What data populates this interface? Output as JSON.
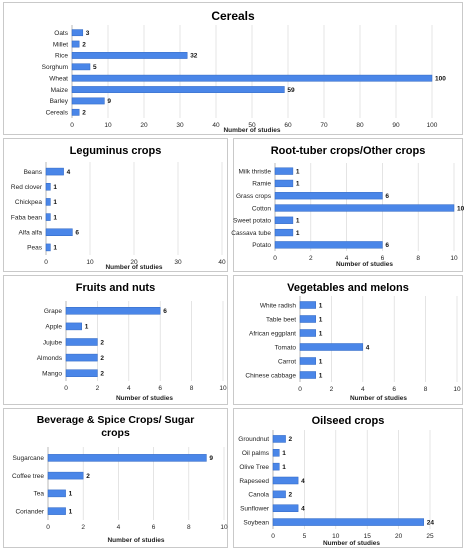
{
  "chart_data": [
    {
      "type": "bar",
      "title": "Cereals",
      "categories": [
        "Oats",
        "Millet",
        "Rice",
        "Sorghum",
        "Wheat",
        "Maize",
        "Barley",
        "Cereals"
      ],
      "values": [
        3,
        2,
        32,
        5,
        100,
        59,
        9,
        2
      ],
      "xlabel": "Number of studies",
      "xlim": [
        0,
        100
      ],
      "xticks": [
        0,
        10,
        20,
        30,
        40,
        50,
        60,
        70,
        80,
        90,
        100
      ],
      "orientation": "horizontal",
      "grid": true
    },
    {
      "type": "bar",
      "title": "Leguminus crops",
      "categories": [
        "Beans",
        "Red clover",
        "Chickpea",
        "Faba bean",
        "Alfa alfa",
        "Peas"
      ],
      "values": [
        4,
        1,
        1,
        1,
        6,
        1
      ],
      "xlabel": "Number of studies",
      "xlim": [
        0,
        40
      ],
      "xticks": [
        0,
        10,
        20,
        30,
        40
      ],
      "orientation": "horizontal",
      "grid": true
    },
    {
      "type": "bar",
      "title": "Root-tuber crops/Other crops",
      "categories": [
        "Milk thristle",
        "Ramie",
        "Grass crops",
        "Cotton",
        "Sweet potato",
        "Cassava tube",
        "Potato"
      ],
      "values": [
        1,
        1,
        6,
        10,
        1,
        1,
        6
      ],
      "xlabel": "Number of studies",
      "xlim": [
        0,
        10
      ],
      "xticks": [
        0,
        2,
        4,
        6,
        8,
        10
      ],
      "orientation": "horizontal",
      "grid": true
    },
    {
      "type": "bar",
      "title": "Fruits and nuts",
      "categories": [
        "Grape",
        "Apple",
        "Jujube",
        "Almonds",
        "Mango"
      ],
      "values": [
        6,
        1,
        2,
        2,
        2
      ],
      "xlabel": "Number of studies",
      "xlim": [
        0,
        10
      ],
      "xticks": [
        0,
        2,
        4,
        6,
        8,
        10
      ],
      "orientation": "horizontal",
      "grid": true
    },
    {
      "type": "bar",
      "title": "Vegetables and melons",
      "categories": [
        "White radish",
        "Table beet",
        "African eggplant",
        "Tomato",
        "Carrot",
        "Chinese cabbage"
      ],
      "values": [
        1,
        1,
        1,
        4,
        1,
        1
      ],
      "xlabel": "Number of studies",
      "xlim": [
        0,
        10
      ],
      "xticks": [
        0,
        2,
        4,
        6,
        8,
        10
      ],
      "orientation": "horizontal",
      "grid": true
    },
    {
      "type": "bar",
      "title": "Beverage & Spice Crops/ Sugar crops",
      "categories": [
        "Sugarcane",
        "Coffee tree",
        "Tea",
        "Coriander"
      ],
      "values": [
        9,
        2,
        1,
        1
      ],
      "xlabel": "Number of studies",
      "xlim": [
        0,
        10
      ],
      "xticks": [
        0,
        2,
        4,
        6,
        8,
        10
      ],
      "orientation": "horizontal",
      "grid": true
    },
    {
      "type": "bar",
      "title": "Oilseed crops",
      "categories": [
        "Groundnut",
        "Oil palms",
        "Olive Tree",
        "Rapeseed",
        "Canola",
        "Sunflower",
        "Soybean"
      ],
      "values": [
        2,
        1,
        1,
        4,
        2,
        4,
        24
      ],
      "xlabel": "Number of studies",
      "xlim": [
        0,
        25
      ],
      "xticks": [
        0,
        5,
        10,
        15,
        20,
        25
      ],
      "orientation": "horizontal",
      "grid": true
    }
  ],
  "style": {
    "bar_color": "#4a86e8",
    "bar_edge": "#2f66c2",
    "grid_color": "#d9d9d9",
    "axis_color": "#9a9a9a"
  }
}
